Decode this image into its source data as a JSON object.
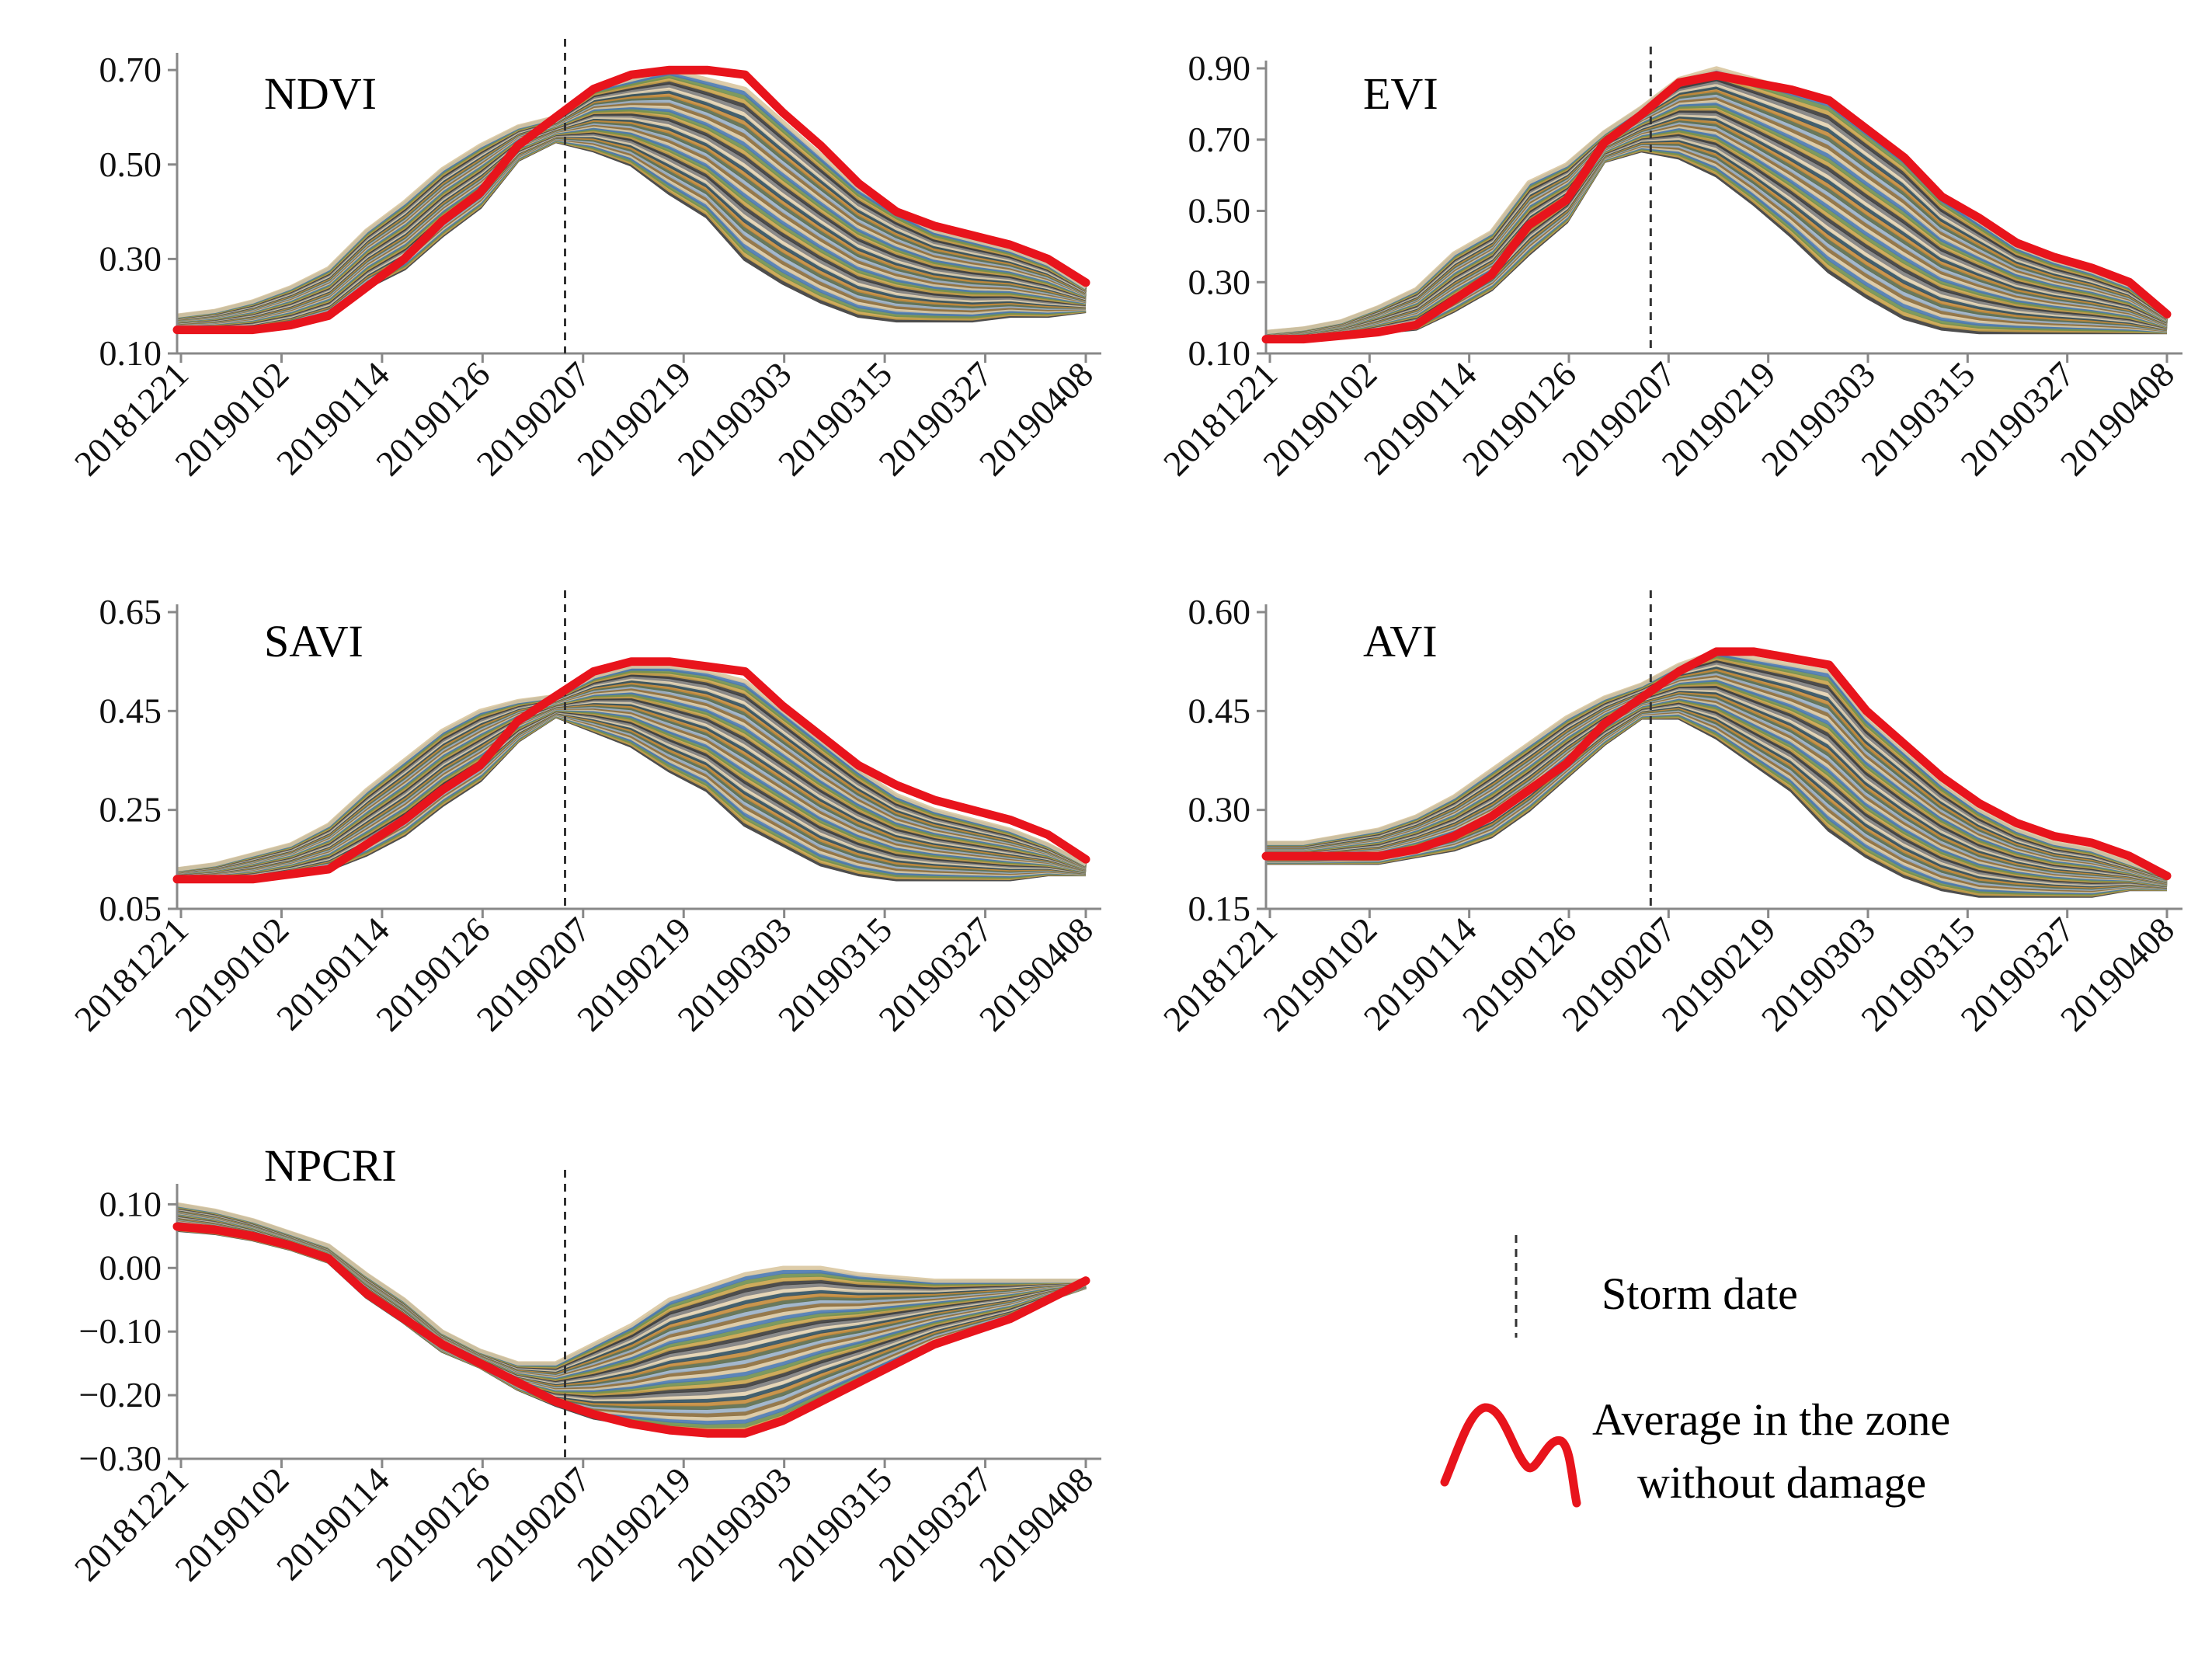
{
  "colors": {
    "average_line": "#e8141c",
    "storm_line": "#333333",
    "axis": "#888888",
    "band_palette": [
      "#3a3a3a",
      "#c9a24a",
      "#6f8f4f",
      "#4a78b0",
      "#d9c7a0",
      "#8a6a3a",
      "#9ab0c8",
      "#5a6a4a",
      "#c48a3a",
      "#2f4f5f",
      "#e3d2b0",
      "#7d7d7d"
    ]
  },
  "legend": {
    "storm_label": "Storm date",
    "average_label_line1": "Average in the zone",
    "average_label_line2": "without damage"
  },
  "chart_data": [
    {
      "type": "line",
      "title": "NDVI",
      "storm_date_index": 10,
      "x_tick_labels": [
        "20181221",
        "20190102",
        "20190114",
        "20190126",
        "20190207",
        "20190219",
        "20190303",
        "20190315",
        "20190327",
        "20190408"
      ],
      "y_tick_labels": [
        "0.10",
        "0.30",
        "0.50",
        "0.70"
      ],
      "ylim": [
        0.1,
        0.72
      ],
      "series": [
        {
          "role": "average",
          "values": [
            0.15,
            0.15,
            0.15,
            0.16,
            0.18,
            0.24,
            0.3,
            0.38,
            0.44,
            0.54,
            0.6,
            0.66,
            0.69,
            0.7,
            0.7,
            0.69,
            0.61,
            0.54,
            0.46,
            0.4,
            0.37,
            0.35,
            0.33,
            0.3,
            0.25
          ]
        },
        {
          "role": "upper",
          "values": [
            0.18,
            0.19,
            0.21,
            0.24,
            0.28,
            0.36,
            0.42,
            0.49,
            0.54,
            0.58,
            0.6,
            0.66,
            0.68,
            0.7,
            0.68,
            0.66,
            0.59,
            0.52,
            0.45,
            0.4,
            0.36,
            0.34,
            0.32,
            0.29,
            0.24
          ]
        },
        {
          "role": "lower",
          "values": [
            0.15,
            0.15,
            0.15,
            0.16,
            0.18,
            0.24,
            0.28,
            0.35,
            0.41,
            0.51,
            0.55,
            0.53,
            0.5,
            0.44,
            0.39,
            0.3,
            0.25,
            0.21,
            0.18,
            0.17,
            0.17,
            0.17,
            0.18,
            0.18,
            0.19
          ]
        }
      ]
    },
    {
      "type": "line",
      "title": "EVI",
      "storm_date_index": 10,
      "x_tick_labels": [
        "20181221",
        "20190102",
        "20190114",
        "20190126",
        "20190207",
        "20190219",
        "20190303",
        "20190315",
        "20190327",
        "20190408"
      ],
      "y_tick_labels": [
        "0.10",
        "0.30",
        "0.50",
        "0.70",
        "0.90"
      ],
      "ylim": [
        0.1,
        0.9
      ],
      "series": [
        {
          "role": "average",
          "values": [
            0.14,
            0.14,
            0.15,
            0.16,
            0.18,
            0.25,
            0.32,
            0.46,
            0.53,
            0.69,
            0.77,
            0.86,
            0.88,
            0.86,
            0.84,
            0.81,
            0.73,
            0.65,
            0.54,
            0.48,
            0.41,
            0.37,
            0.34,
            0.3,
            0.21
          ]
        },
        {
          "role": "upper",
          "values": [
            0.16,
            0.17,
            0.19,
            0.23,
            0.28,
            0.38,
            0.44,
            0.58,
            0.63,
            0.72,
            0.79,
            0.87,
            0.9,
            0.87,
            0.84,
            0.81,
            0.73,
            0.65,
            0.54,
            0.47,
            0.4,
            0.36,
            0.33,
            0.29,
            0.21
          ]
        },
        {
          "role": "lower",
          "values": [
            0.14,
            0.14,
            0.15,
            0.16,
            0.17,
            0.22,
            0.28,
            0.38,
            0.47,
            0.64,
            0.67,
            0.65,
            0.6,
            0.52,
            0.43,
            0.33,
            0.26,
            0.2,
            0.17,
            0.16,
            0.16,
            0.16,
            0.16,
            0.16,
            0.16
          ]
        }
      ]
    },
    {
      "type": "line",
      "title": "SAVI",
      "storm_date_index": 10,
      "x_tick_labels": [
        "20181221",
        "20190102",
        "20190114",
        "20190126",
        "20190207",
        "20190219",
        "20190303",
        "20190315",
        "20190327",
        "20190408"
      ],
      "y_tick_labels": [
        "0.05",
        "0.25",
        "0.45",
        "0.65"
      ],
      "ylim": [
        0.05,
        0.65
      ],
      "series": [
        {
          "role": "average",
          "values": [
            0.11,
            0.11,
            0.11,
            0.12,
            0.13,
            0.18,
            0.23,
            0.29,
            0.34,
            0.43,
            0.48,
            0.53,
            0.55,
            0.55,
            0.54,
            0.53,
            0.46,
            0.4,
            0.34,
            0.3,
            0.27,
            0.25,
            0.23,
            0.2,
            0.15
          ]
        },
        {
          "role": "upper",
          "values": [
            0.13,
            0.14,
            0.16,
            0.18,
            0.22,
            0.29,
            0.35,
            0.41,
            0.45,
            0.47,
            0.48,
            0.52,
            0.54,
            0.54,
            0.53,
            0.51,
            0.45,
            0.39,
            0.33,
            0.28,
            0.25,
            0.23,
            0.21,
            0.18,
            0.14
          ]
        },
        {
          "role": "lower",
          "values": [
            0.11,
            0.11,
            0.11,
            0.12,
            0.13,
            0.16,
            0.2,
            0.26,
            0.31,
            0.39,
            0.44,
            0.41,
            0.38,
            0.33,
            0.29,
            0.22,
            0.18,
            0.14,
            0.12,
            0.11,
            0.11,
            0.11,
            0.11,
            0.12,
            0.12
          ]
        }
      ]
    },
    {
      "type": "line",
      "title": "AVI",
      "storm_date_index": 10,
      "x_tick_labels": [
        "20181221",
        "20190102",
        "20190114",
        "20190126",
        "20190207",
        "20190219",
        "20190303",
        "20190315",
        "20190327",
        "20190408"
      ],
      "y_tick_labels": [
        "0.15",
        "0.30",
        "0.45",
        "0.60"
      ],
      "ylim": [
        0.15,
        0.6
      ],
      "series": [
        {
          "role": "average",
          "values": [
            0.23,
            0.23,
            0.23,
            0.23,
            0.24,
            0.26,
            0.29,
            0.33,
            0.37,
            0.43,
            0.47,
            0.51,
            0.54,
            0.54,
            0.53,
            0.52,
            0.45,
            0.4,
            0.35,
            0.31,
            0.28,
            0.26,
            0.25,
            0.23,
            0.2
          ]
        },
        {
          "role": "upper",
          "values": [
            0.25,
            0.25,
            0.26,
            0.27,
            0.29,
            0.32,
            0.36,
            0.4,
            0.44,
            0.47,
            0.49,
            0.52,
            0.54,
            0.53,
            0.52,
            0.51,
            0.44,
            0.39,
            0.34,
            0.3,
            0.27,
            0.25,
            0.24,
            0.22,
            0.2
          ]
        },
        {
          "role": "lower",
          "values": [
            0.22,
            0.22,
            0.22,
            0.22,
            0.23,
            0.24,
            0.26,
            0.3,
            0.35,
            0.4,
            0.44,
            0.44,
            0.41,
            0.37,
            0.33,
            0.27,
            0.23,
            0.2,
            0.18,
            0.17,
            0.17,
            0.17,
            0.17,
            0.18,
            0.18
          ]
        }
      ]
    },
    {
      "type": "line",
      "title": "NPCRI",
      "storm_date_index": 10,
      "x_tick_labels": [
        "20181221",
        "20190102",
        "20190114",
        "20190126",
        "20190207",
        "20190219",
        "20190303",
        "20190315",
        "20190327",
        "20190408"
      ],
      "y_tick_labels": [
        "−0.30",
        "−0.20",
        "−0.10",
        "0.00",
        "0.10"
      ],
      "ylim": [
        -0.3,
        0.12
      ],
      "series": [
        {
          "role": "average",
          "values": [
            0.065,
            0.06,
            0.05,
            0.035,
            0.015,
            -0.04,
            -0.08,
            -0.12,
            -0.15,
            -0.18,
            -0.21,
            -0.23,
            -0.245,
            -0.255,
            -0.26,
            -0.26,
            -0.24,
            -0.21,
            -0.18,
            -0.15,
            -0.12,
            -0.1,
            -0.08,
            -0.05,
            -0.02
          ]
        },
        {
          "role": "upper",
          "values": [
            0.1,
            0.09,
            0.075,
            0.055,
            0.035,
            -0.01,
            -0.05,
            -0.1,
            -0.13,
            -0.15,
            -0.15,
            -0.12,
            -0.09,
            -0.05,
            -0.03,
            -0.01,
            0.0,
            0.0,
            -0.01,
            -0.015,
            -0.02,
            -0.02,
            -0.02,
            -0.02,
            -0.02
          ]
        },
        {
          "role": "lower",
          "values": [
            0.06,
            0.055,
            0.045,
            0.03,
            0.01,
            -0.045,
            -0.085,
            -0.13,
            -0.155,
            -0.19,
            -0.215,
            -0.235,
            -0.245,
            -0.255,
            -0.26,
            -0.26,
            -0.24,
            -0.21,
            -0.18,
            -0.15,
            -0.12,
            -0.1,
            -0.08,
            -0.05,
            -0.03
          ]
        }
      ]
    }
  ]
}
